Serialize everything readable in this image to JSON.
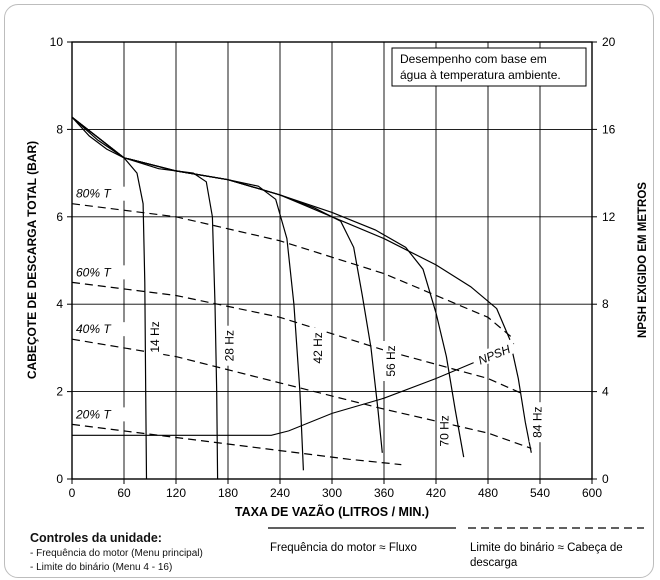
{
  "chart_data": {
    "type": "line",
    "xlabel": "TAXA DE VAZÃO (LITROS / MIN.)",
    "ylabel_left": "CABEÇOTE DE DESCARGA TOTAL (BAR)",
    "ylabel_right": "NPSH EXIGIDO EM METROS",
    "xlim": [
      0,
      600
    ],
    "ylim_left": [
      0,
      10
    ],
    "ylim_right": [
      0,
      20
    ],
    "xticks": [
      0,
      60,
      120,
      180,
      240,
      300,
      360,
      420,
      480,
      540,
      600
    ],
    "yticks_left": [
      0,
      2,
      4,
      6,
      8,
      10
    ],
    "yticks_right": [
      0,
      4,
      8,
      12,
      16,
      20
    ],
    "grid": true,
    "annotation": [
      "Desempenho com base em",
      "água à temperatura ambiente."
    ],
    "frequency_curves": [
      {
        "name": "14 Hz",
        "points": [
          [
            0,
            8.28
          ],
          [
            20,
            7.85
          ],
          [
            40,
            7.55
          ],
          [
            60,
            7.35
          ],
          [
            75,
            7.0
          ],
          [
            82,
            6.3
          ],
          [
            84,
            4.5
          ],
          [
            85,
            2.0
          ],
          [
            86,
            0.0
          ]
        ]
      },
      {
        "name": "28 Hz",
        "points": [
          [
            0,
            8.28
          ],
          [
            30,
            7.75
          ],
          [
            60,
            7.35
          ],
          [
            100,
            7.1
          ],
          [
            140,
            7.0
          ],
          [
            155,
            6.8
          ],
          [
            162,
            6.0
          ],
          [
            165,
            4.0
          ],
          [
            167,
            2.0
          ],
          [
            168,
            0.0
          ]
        ]
      },
      {
        "name": "42 Hz",
        "points": [
          [
            0,
            8.28
          ],
          [
            60,
            7.35
          ],
          [
            120,
            7.05
          ],
          [
            180,
            6.85
          ],
          [
            215,
            6.7
          ],
          [
            235,
            6.4
          ],
          [
            248,
            5.5
          ],
          [
            256,
            4.0
          ],
          [
            263,
            2.0
          ],
          [
            267,
            0.2
          ]
        ]
      },
      {
        "name": "56 Hz",
        "points": [
          [
            0,
            8.28
          ],
          [
            60,
            7.35
          ],
          [
            120,
            7.05
          ],
          [
            180,
            6.85
          ],
          [
            240,
            6.5
          ],
          [
            280,
            6.2
          ],
          [
            310,
            5.9
          ],
          [
            325,
            5.3
          ],
          [
            335,
            4.2
          ],
          [
            345,
            3.0
          ],
          [
            353,
            1.6
          ],
          [
            358,
            0.6
          ]
        ]
      },
      {
        "name": "70 Hz",
        "points": [
          [
            0,
            8.28
          ],
          [
            60,
            7.35
          ],
          [
            120,
            7.05
          ],
          [
            180,
            6.85
          ],
          [
            240,
            6.5
          ],
          [
            300,
            6.1
          ],
          [
            350,
            5.7
          ],
          [
            385,
            5.3
          ],
          [
            405,
            4.8
          ],
          [
            420,
            3.8
          ],
          [
            432,
            2.8
          ],
          [
            442,
            1.6
          ],
          [
            452,
            0.5
          ]
        ]
      },
      {
        "name": "84 Hz",
        "points": [
          [
            0,
            8.28
          ],
          [
            60,
            7.35
          ],
          [
            120,
            7.05
          ],
          [
            180,
            6.85
          ],
          [
            240,
            6.5
          ],
          [
            300,
            6.0
          ],
          [
            360,
            5.5
          ],
          [
            420,
            4.9
          ],
          [
            460,
            4.4
          ],
          [
            490,
            3.9
          ],
          [
            505,
            3.2
          ],
          [
            515,
            2.3
          ],
          [
            523,
            1.3
          ],
          [
            530,
            0.6
          ]
        ]
      }
    ],
    "torque_curves": [
      {
        "name": "80% T",
        "points": [
          [
            0,
            6.3
          ],
          [
            120,
            6.0
          ],
          [
            240,
            5.45
          ],
          [
            360,
            4.7
          ],
          [
            480,
            3.7
          ],
          [
            510,
            3.2
          ]
        ]
      },
      {
        "name": "60% T",
        "points": [
          [
            0,
            4.5
          ],
          [
            120,
            4.2
          ],
          [
            240,
            3.7
          ],
          [
            360,
            2.95
          ],
          [
            480,
            2.3
          ],
          [
            520,
            1.95
          ]
        ]
      },
      {
        "name": "40% T",
        "points": [
          [
            0,
            3.2
          ],
          [
            120,
            2.8
          ],
          [
            240,
            2.2
          ],
          [
            360,
            1.6
          ],
          [
            480,
            1.05
          ],
          [
            530,
            0.7
          ]
        ]
      },
      {
        "name": "20% T",
        "points": [
          [
            0,
            1.25
          ],
          [
            120,
            0.95
          ],
          [
            240,
            0.65
          ],
          [
            320,
            0.45
          ],
          [
            380,
            0.33
          ]
        ]
      }
    ],
    "npsh_curve": {
      "name": "NPSH",
      "points": [
        [
          0,
          1.0
        ],
        [
          120,
          1.0
        ],
        [
          230,
          1.0
        ],
        [
          250,
          1.1
        ],
        [
          300,
          1.5
        ],
        [
          360,
          1.85
        ],
        [
          420,
          2.3
        ],
        [
          480,
          2.8
        ],
        [
          510,
          3.1
        ]
      ]
    }
  },
  "legend": {
    "controls_title": "Controles da unidade:",
    "controls_items": [
      "Frequência do motor (Menu principal)",
      "Limite do binário (Menu 4 - 16)"
    ],
    "solid_label": "Frequência do motor ≈ Fluxo",
    "dashed_label": [
      "Limite do binário ≈ Cabeça de",
      "descarga"
    ]
  }
}
